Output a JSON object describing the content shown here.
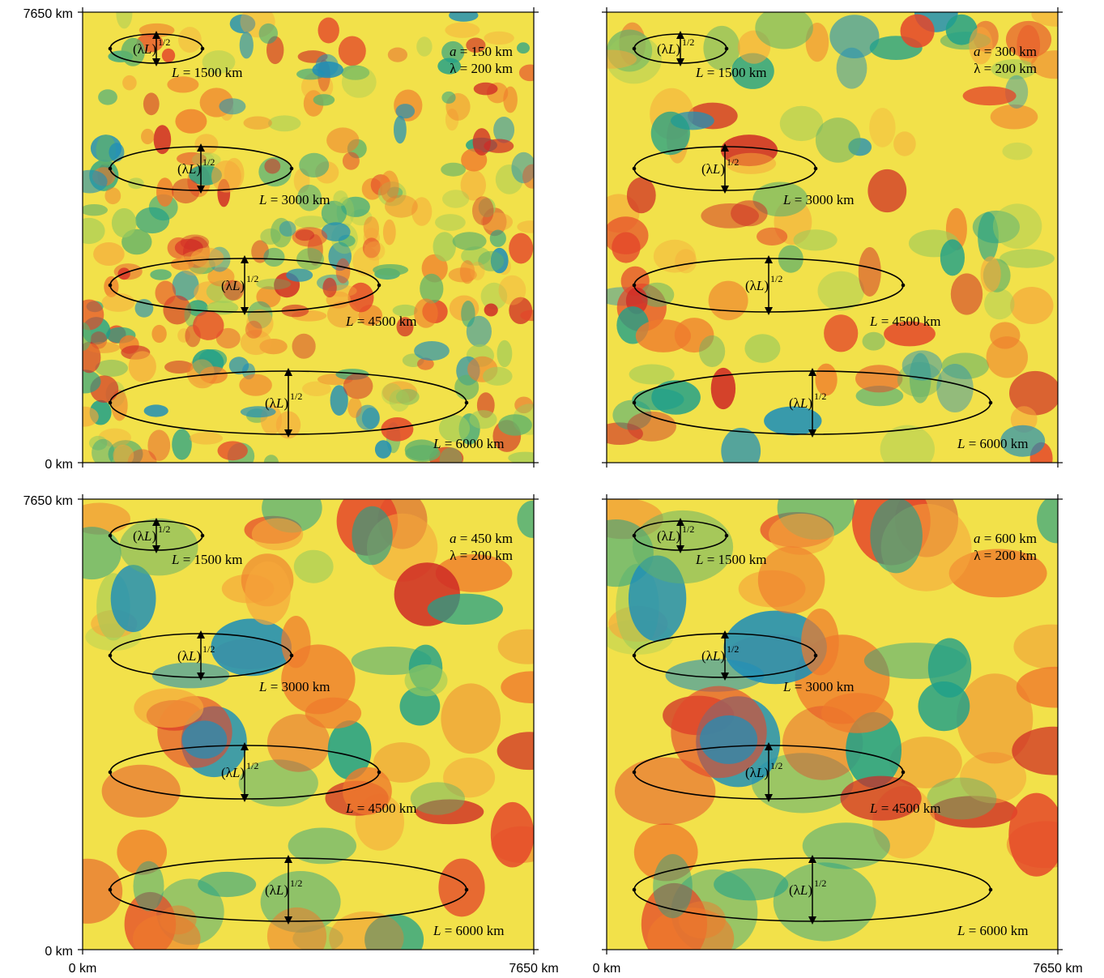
{
  "axis": {
    "y_top": "7650 km",
    "y_bottom": "0 km",
    "x_left": "0 km",
    "x_right": "7650 km"
  },
  "ellipse_labels": {
    "pre": "(",
    "lambda": "λ",
    "L": "L",
    "close": ")",
    "exponent": "1/2"
  },
  "L_values": [
    "1500 km",
    "3000 km",
    "4500 km",
    "6000 km"
  ],
  "panels": [
    {
      "a": "150 km",
      "lambda": "200 km",
      "smooth": 1,
      "seed": 11
    },
    {
      "a": "300 km",
      "lambda": "200 km",
      "smooth": 2,
      "seed": 23
    },
    {
      "a": "450 km",
      "lambda": "200 km",
      "smooth": 3,
      "seed": 37
    },
    {
      "a": "600 km",
      "lambda": "200 km",
      "smooth": 4,
      "seed": 37
    }
  ],
  "param_text": {
    "a": "a",
    "lambda_sym": "λ",
    "eq": " = "
  },
  "colors": {
    "background_field": "#f2e14a",
    "frame": "#000000"
  }
}
